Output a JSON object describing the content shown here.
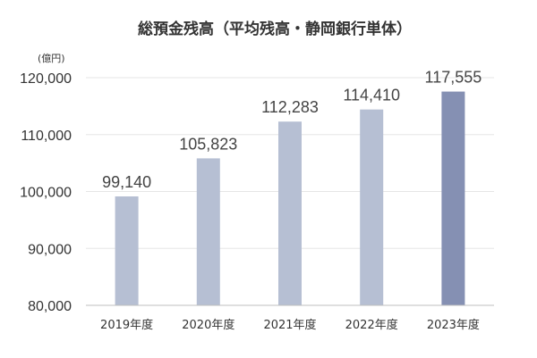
{
  "chart_data": {
    "type": "bar",
    "title": "総預金残高（平均残高・静岡銀行単体）",
    "unit_label": "(億円)",
    "categories": [
      "2019年度",
      "2020年度",
      "2021年度",
      "2022年度",
      "2023年度"
    ],
    "values": [
      99140,
      105823,
      112283,
      114410,
      117555
    ],
    "value_labels": [
      "99,140",
      "105,823",
      "112,283",
      "114,410",
      "117,555"
    ],
    "ylim": [
      80000,
      120000
    ],
    "yticks": [
      80000,
      90000,
      100000,
      110000,
      120000
    ],
    "ytick_labels": [
      "80,000",
      "90,000",
      "100,000",
      "110,000",
      "120,000"
    ],
    "grid": true,
    "legend": "none",
    "colors": {
      "bar": "#b6bfd3",
      "highlight_bar": "#8590b3",
      "highlight_index": 4
    }
  }
}
